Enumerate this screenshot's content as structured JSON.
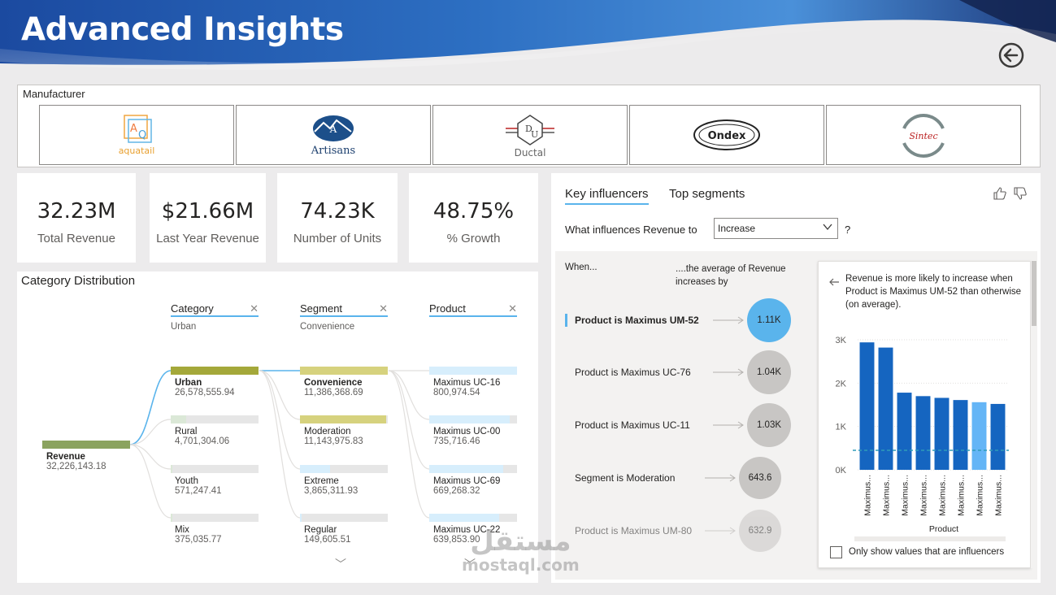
{
  "header": {
    "title": "Advanced Insights",
    "back_icon": "back-arrow-circle-icon"
  },
  "manufacturer": {
    "label": "Manufacturer",
    "logos": [
      {
        "name": "aquatail",
        "text": "aquatail",
        "mark": "AQ"
      },
      {
        "name": "Artisans",
        "text": "Artisans",
        "mark": "A"
      },
      {
        "name": "Ductal",
        "text": "Ductal",
        "mark": "DU"
      },
      {
        "name": "Ondex",
        "text": "Ondex"
      },
      {
        "name": "Sintec",
        "text": "Sintec"
      }
    ]
  },
  "kpis": [
    {
      "value": "32.23M",
      "label": "Total Revenue"
    },
    {
      "value": "$21.66M",
      "label": "Last Year Revenue"
    },
    {
      "value": "74.23K",
      "label": "Number of Units"
    },
    {
      "value": "48.75%",
      "label": "% Growth"
    }
  ],
  "decomposition": {
    "title": "Category Distribution",
    "root": {
      "name": "Revenue",
      "value": "32,226,143.18"
    },
    "levels": [
      {
        "header": "Category",
        "selected": "Urban",
        "nodes": [
          {
            "name": "Urban",
            "value": "26,578,555.94",
            "fill": 1.0
          },
          {
            "name": "Rural",
            "value": "4,701,304.06",
            "fill": 0.18
          },
          {
            "name": "Youth",
            "value": "571,247.41",
            "fill": 0.02
          },
          {
            "name": "Mix",
            "value": "375,035.77",
            "fill": 0.014
          }
        ]
      },
      {
        "header": "Segment",
        "selected": "Convenience",
        "nodes": [
          {
            "name": "Convenience",
            "value": "11,386,368.69",
            "fill": 1.0
          },
          {
            "name": "Moderation",
            "value": "11,143,975.83",
            "fill": 0.98
          },
          {
            "name": "Extreme",
            "value": "3,865,311.93",
            "fill": 0.34
          },
          {
            "name": "Regular",
            "value": "149,605.51",
            "fill": 0.013
          }
        ]
      },
      {
        "header": "Product",
        "selected": "",
        "nodes": [
          {
            "name": "Maximus UC-16",
            "value": "800,974.54",
            "fill": 1.0
          },
          {
            "name": "Maximus UC-00",
            "value": "735,716.46",
            "fill": 0.92
          },
          {
            "name": "Maximus UC-69",
            "value": "669,268.32",
            "fill": 0.84
          },
          {
            "name": "Maximus UC-22",
            "value": "639,853.90",
            "fill": 0.8
          }
        ]
      }
    ],
    "colors": {
      "level1": "#a4a83a",
      "level2": "#d6d27e",
      "level3": "#d7eefc",
      "root": "#8ba35f",
      "link": "#5ab4ec"
    }
  },
  "key_influencers": {
    "tabs": [
      "Key influencers",
      "Top segments"
    ],
    "active_tab": 0,
    "question": "What influences Revenue to",
    "dropdown_value": "Increase",
    "question_mark": "?",
    "col_when": "When...",
    "col_avg": "....the average of Revenue increases by",
    "influencers": [
      {
        "label": "Product is Maximus UM-52",
        "value": "1.11K",
        "selected": true
      },
      {
        "label": "Product is Maximus UC-76",
        "value": "1.04K",
        "selected": false
      },
      {
        "label": "Product is Maximus UC-11",
        "value": "1.03K",
        "selected": false
      },
      {
        "label": "Segment is Moderation",
        "value": "643.6",
        "selected": false
      },
      {
        "label": "Product is Maximus UM-80",
        "value": "632.9",
        "selected": false
      }
    ],
    "detail": {
      "text": "Revenue is more likely to increase when Product is Maximus UM-52 than otherwise (on average).",
      "checkbox_label": "Only show values that are influencers",
      "chart_data": {
        "type": "bar",
        "xlabel": "Product",
        "ylabel": "",
        "y_ticks": [
          "3K",
          "2K",
          "1K",
          "0K"
        ],
        "ylim": [
          0,
          3000
        ],
        "categories": [
          "Maximus...",
          "Maximus...",
          "Maximus...",
          "Maximus...",
          "Maximus...",
          "Maximus...",
          "Maximus...",
          "Maximus..."
        ],
        "values": [
          2940,
          2820,
          1780,
          1700,
          1660,
          1610,
          1560,
          1520
        ],
        "highlight_index": 6,
        "average_line": 450,
        "colors": {
          "bar": "#1565c0",
          "highlight": "#64b5f6",
          "avg": "#2e9bb8"
        }
      }
    }
  },
  "watermark": {
    "arabic": "مستقل",
    "latin": "mostaql.com"
  }
}
